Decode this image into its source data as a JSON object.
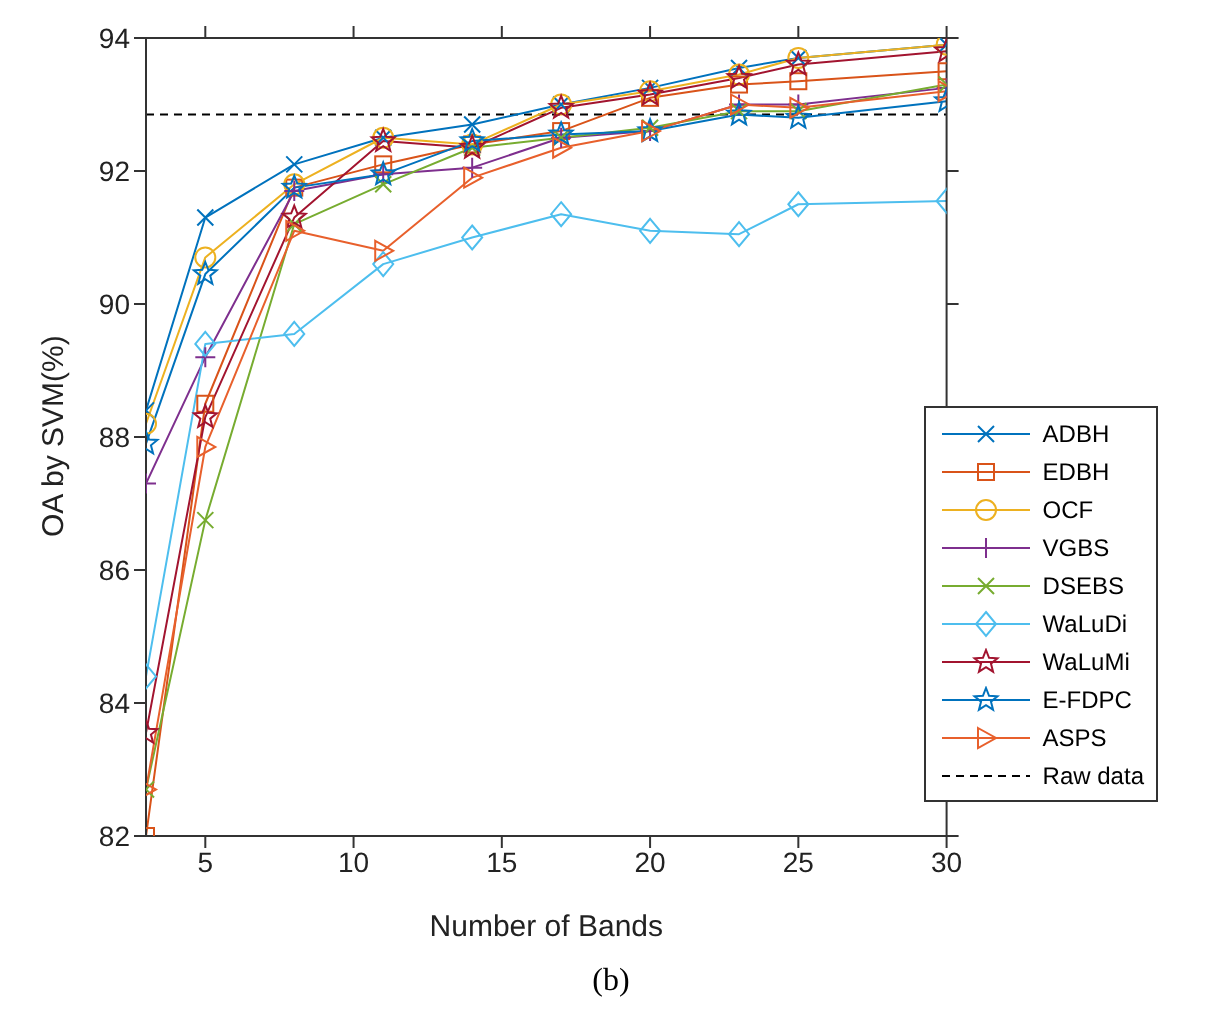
{
  "chart_data": {
    "type": "line",
    "xlabel": "Number of Bands",
    "ylabel": "OA by SVM(%)",
    "x": [
      3,
      5,
      8,
      11,
      14,
      17,
      20,
      23,
      25,
      30
    ],
    "xlim": [
      3,
      30
    ],
    "xticks": [
      5,
      10,
      15,
      20,
      25,
      30
    ],
    "ylim": [
      82,
      94
    ],
    "yticks": [
      82,
      84,
      86,
      88,
      90,
      92,
      94
    ],
    "grid": false,
    "legend": "right",
    "annotations": [
      "(b)"
    ],
    "series": [
      {
        "name": "ADBH",
        "color": "#0072bd",
        "marker": "cross",
        "values": [
          88.4,
          91.3,
          92.1,
          92.5,
          92.7,
          93.0,
          93.25,
          93.55,
          93.7,
          93.9
        ]
      },
      {
        "name": "EDBH",
        "color": "#d95319",
        "marker": "square",
        "values": [
          82.0,
          88.5,
          91.75,
          92.1,
          92.4,
          92.6,
          93.1,
          93.3,
          93.35,
          93.5
        ]
      },
      {
        "name": "OCF",
        "color": "#edb120",
        "marker": "circle",
        "values": [
          88.2,
          90.7,
          91.8,
          92.5,
          92.4,
          93.0,
          93.2,
          93.45,
          93.7,
          93.9
        ]
      },
      {
        "name": "VGBS",
        "color": "#7e2f8e",
        "marker": "plus",
        "values": [
          87.3,
          89.2,
          91.7,
          91.95,
          92.05,
          92.5,
          92.6,
          93.0,
          93.0,
          93.25
        ]
      },
      {
        "name": "DSEBS",
        "color": "#77ac30",
        "marker": "cross",
        "values": [
          82.7,
          86.75,
          91.2,
          91.8,
          92.35,
          92.5,
          92.65,
          92.9,
          92.9,
          93.3
        ]
      },
      {
        "name": "WaLuDi",
        "color": "#4dbeee",
        "marker": "diamond",
        "values": [
          84.4,
          89.4,
          89.55,
          90.6,
          91.0,
          91.35,
          91.1,
          91.05,
          91.5,
          91.55
        ]
      },
      {
        "name": "WaLuMi",
        "color": "#a2142f",
        "marker": "star",
        "values": [
          83.55,
          88.3,
          91.3,
          92.45,
          92.35,
          92.95,
          93.15,
          93.4,
          93.6,
          93.8
        ]
      },
      {
        "name": "E-FDPC",
        "color": "#0072bd",
        "marker": "star",
        "values": [
          87.9,
          90.45,
          91.75,
          91.95,
          92.45,
          92.55,
          92.6,
          92.85,
          92.8,
          93.05
        ]
      },
      {
        "name": "ASPS",
        "color": "#e8602c",
        "marker": "triangle-right",
        "values": [
          82.7,
          87.85,
          91.1,
          90.8,
          91.9,
          92.35,
          92.6,
          93.0,
          92.95,
          93.2
        ]
      }
    ],
    "ref_lines": [
      {
        "axis": "y",
        "value": 92.85,
        "label": "Raw data",
        "color": "#000000",
        "line_style": "dashed"
      }
    ]
  }
}
